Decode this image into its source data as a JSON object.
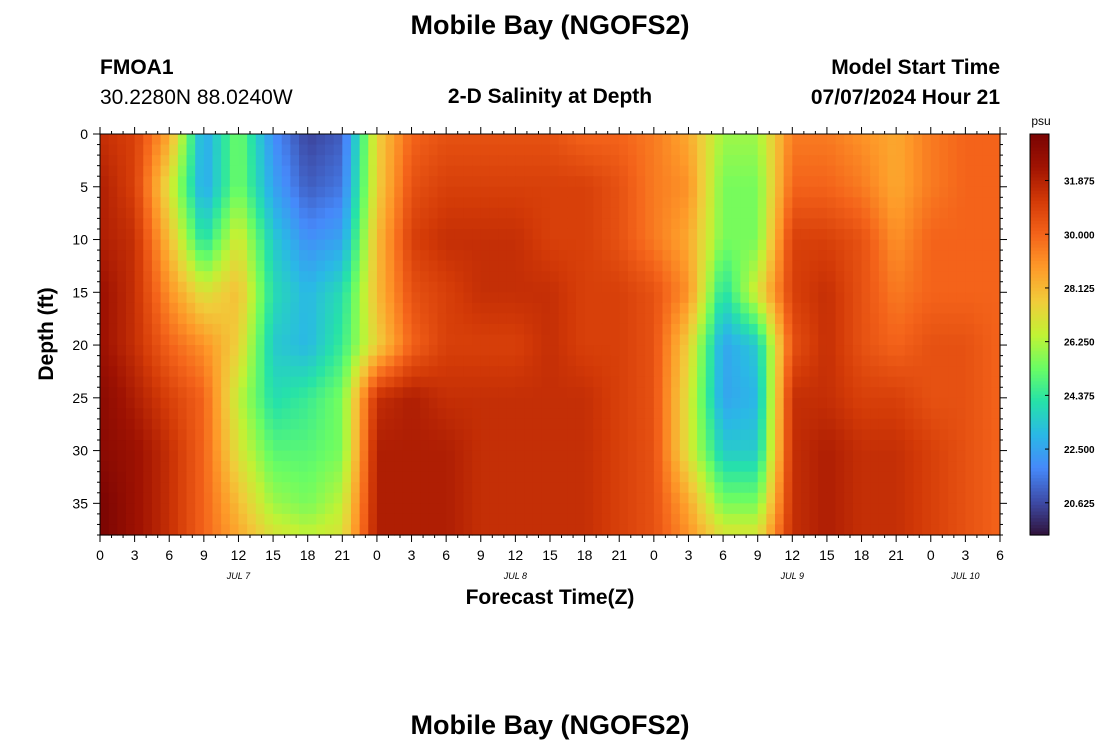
{
  "page": {
    "title": "Mobile Bay (NGOFS2)",
    "station_id": "FMOA1",
    "station_coords": "30.2280N  88.0240W",
    "subtitle": "2-D Salinity at Depth",
    "model_start_label": "Model Start Time",
    "model_start_value": "07/07/2024 Hour 21",
    "title_repeat": "Mobile Bay (NGOFS2)"
  },
  "colors": {
    "ramp": [
      "#30123b",
      "#3e4ca8",
      "#4689fa",
      "#2ab8e6",
      "#26e2a8",
      "#6bfd63",
      "#c2f234",
      "#f1cb3a",
      "#fe9a29",
      "#f4631a",
      "#d33a07",
      "#a01302",
      "#7a0403"
    ]
  },
  "chart_data": {
    "type": "heatmap",
    "xlabel": "Forecast Time(Z)",
    "ylabel": "Depth (ft)",
    "colorbar_unit": "psu",
    "x_ticks": [
      "0",
      "3",
      "6",
      "9",
      "12",
      "15",
      "18",
      "21",
      "0",
      "3",
      "6",
      "9",
      "12",
      "15",
      "18",
      "21",
      "0",
      "3",
      "6",
      "9",
      "12",
      "15",
      "18",
      "21",
      "0",
      "3",
      "6"
    ],
    "day_labels": [
      {
        "text": "JUL 7",
        "hour": 12
      },
      {
        "text": "JUL 8",
        "hour": 36
      },
      {
        "text": "JUL 9",
        "hour": 60
      },
      {
        "text": "JUL 10",
        "hour": 75
      }
    ],
    "x_range_hours": [
      0,
      78
    ],
    "y_ticks": [
      0,
      5,
      10,
      15,
      20,
      25,
      30,
      35
    ],
    "y_range": [
      0,
      38
    ],
    "c_range": [
      19.5,
      33.5
    ],
    "colorbar_ticks": [
      "20.625",
      "22.500",
      "24.375",
      "26.250",
      "28.125",
      "30.000",
      "31.875"
    ],
    "colorbar_tick_values": [
      20.625,
      22.5,
      24.375,
      26.25,
      28.125,
      30.0,
      31.875
    ],
    "grid": false,
    "time_hours": [
      0,
      3,
      6,
      9,
      12,
      15,
      18,
      21,
      24,
      27,
      30,
      33,
      36,
      39,
      42,
      45,
      48,
      51,
      54,
      57,
      60,
      63,
      66,
      69,
      72,
      75,
      78
    ],
    "depth_ft": [
      0,
      5,
      10,
      15,
      20,
      25,
      30,
      35,
      38
    ],
    "salinity_psu": [
      [
        31.5,
        31.0,
        28.5,
        22.5,
        25.5,
        22.0,
        20.5,
        21.0,
        27.5,
        30.0,
        30.5,
        30.5,
        30.5,
        30.5,
        30.0,
        30.0,
        29.5,
        28.5,
        26.0,
        26.0,
        29.5,
        29.5,
        29.0,
        28.5,
        29.5,
        30.0,
        30.0
      ],
      [
        32.0,
        31.0,
        27.0,
        22.5,
        25.5,
        22.5,
        21.0,
        21.5,
        27.5,
        30.5,
        31.0,
        31.0,
        31.0,
        31.0,
        31.0,
        30.5,
        29.5,
        29.0,
        25.5,
        25.5,
        30.0,
        30.0,
        29.5,
        28.5,
        29.5,
        30.0,
        30.0
      ],
      [
        32.0,
        31.5,
        28.0,
        24.0,
        27.0,
        23.5,
        22.0,
        22.5,
        28.0,
        31.0,
        31.5,
        31.5,
        31.5,
        31.0,
        31.0,
        30.5,
        29.5,
        28.5,
        25.5,
        25.5,
        31.0,
        31.0,
        30.5,
        29.0,
        30.0,
        30.0,
        30.0
      ],
      [
        32.5,
        31.5,
        29.0,
        27.0,
        28.0,
        24.0,
        23.0,
        24.0,
        28.0,
        30.5,
        31.0,
        31.5,
        31.5,
        31.5,
        31.0,
        31.0,
        30.5,
        29.0,
        24.0,
        27.0,
        31.0,
        31.5,
        30.5,
        29.5,
        30.0,
        30.0,
        30.0
      ],
      [
        32.5,
        31.5,
        30.0,
        29.0,
        27.5,
        23.5,
        23.0,
        24.5,
        27.5,
        30.0,
        31.0,
        31.0,
        31.0,
        31.5,
        31.0,
        31.0,
        30.5,
        27.5,
        22.5,
        23.5,
        30.5,
        31.5,
        30.5,
        30.0,
        30.5,
        30.5,
        30.0
      ],
      [
        33.0,
        32.0,
        31.0,
        30.0,
        26.5,
        24.0,
        24.5,
        25.5,
        31.5,
        32.0,
        31.5,
        31.5,
        31.5,
        31.5,
        31.5,
        31.0,
        30.5,
        27.0,
        22.5,
        23.0,
        31.5,
        31.5,
        31.0,
        31.0,
        30.5,
        30.5,
        30.0
      ],
      [
        33.0,
        32.5,
        31.5,
        30.0,
        27.0,
        25.0,
        25.0,
        25.5,
        32.0,
        32.0,
        32.0,
        31.5,
        31.5,
        31.5,
        31.5,
        31.0,
        30.5,
        27.0,
        23.5,
        23.5,
        31.5,
        32.0,
        31.5,
        31.5,
        31.0,
        30.5,
        30.0
      ],
      [
        33.5,
        32.5,
        31.5,
        30.0,
        28.0,
        26.0,
        25.5,
        26.5,
        32.0,
        32.0,
        32.0,
        31.5,
        31.5,
        31.5,
        31.5,
        31.0,
        30.5,
        28.5,
        25.5,
        25.5,
        31.5,
        32.0,
        31.5,
        31.5,
        31.0,
        30.5,
        30.0
      ],
      [
        33.5,
        32.5,
        31.5,
        30.0,
        28.5,
        27.0,
        26.5,
        27.0,
        32.0,
        32.0,
        32.0,
        31.5,
        31.5,
        31.5,
        31.5,
        31.0,
        30.5,
        29.0,
        27.0,
        27.0,
        31.5,
        32.0,
        31.5,
        31.5,
        31.0,
        30.5,
        30.0
      ]
    ]
  }
}
